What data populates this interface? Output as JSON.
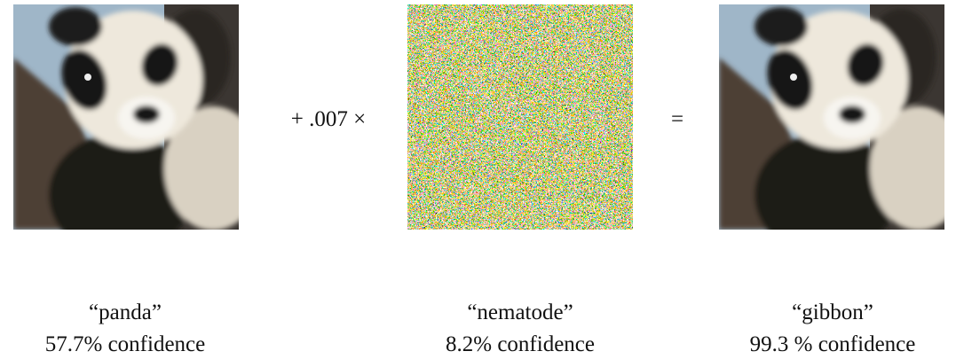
{
  "equation": {
    "operator": "+ .007 ×",
    "equals": "="
  },
  "images": [
    {
      "label": "“panda”",
      "confidence": "57.7% confidence"
    },
    {
      "label": "“nematode”",
      "confidence": "8.2% confidence"
    },
    {
      "label": "“gibbon”",
      "confidence": "99.3 % confidence"
    }
  ]
}
